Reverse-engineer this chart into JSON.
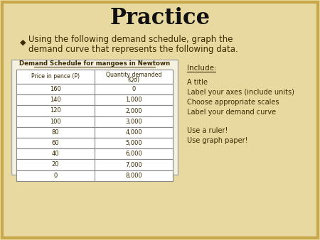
{
  "title": "Practice",
  "bullet_text_line1": "Using the following demand schedule, graph the",
  "bullet_text_line2": "demand curve that represents the following data.",
  "table_title": "Demand Schedule for mangoes in Newtown",
  "col1_header": "Price in pence (P)",
  "col2_header_line1": "Quantity demanded",
  "col2_header_line2": "(Qd)",
  "prices": [
    160,
    140,
    120,
    100,
    80,
    60,
    40,
    20,
    0
  ],
  "quantities": [
    0,
    1000,
    2000,
    3000,
    4000,
    5000,
    6000,
    7000,
    8000
  ],
  "include_title": "Include:",
  "include_items": [
    "A title",
    "Label your axes (include units)",
    "Choose appropriate scales",
    "Label your demand curve"
  ],
  "extra_items": [
    "Use a ruler!",
    "Use graph paper!"
  ],
  "bg_color": "#e8d9a0",
  "paper_color": "#f5f0df",
  "table_bg": "#ffffff",
  "title_color": "#111111",
  "body_color": "#3a2a00",
  "border_color": "#c8a84b",
  "font_size_title": 22,
  "font_size_body": 8.5,
  "font_size_table": 7
}
